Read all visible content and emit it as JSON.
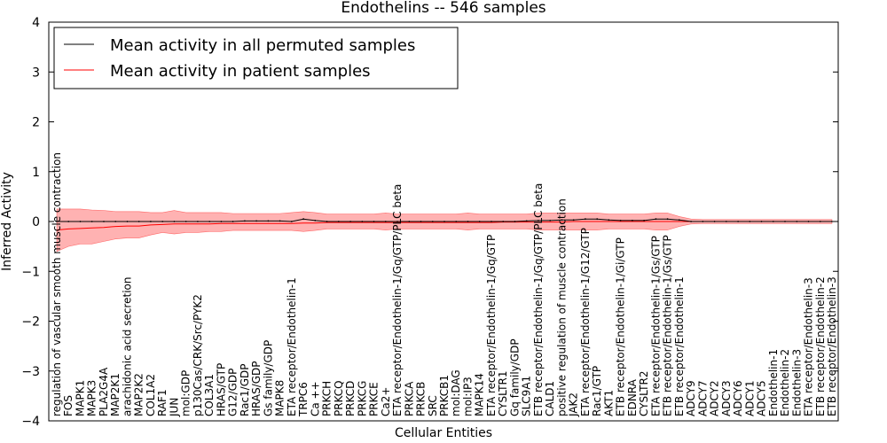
{
  "chart_data": {
    "type": "line",
    "title": "Endothelins -- 546 samples",
    "xlabel": "Cellular Entities",
    "ylabel": "Inferred Activity",
    "ylim": [
      -4,
      4
    ],
    "yticks": [
      "4",
      "3",
      "2",
      "1",
      "0",
      "−1",
      "−2",
      "−3",
      "−4"
    ],
    "grid": false,
    "legend_position": "top-left",
    "colors": {
      "permuted": "#000000",
      "patient": "#ff0000",
      "band": "#ff0000"
    },
    "categories": [
      "regulation of vascular smooth muscle contraction",
      "FOS",
      "MAPK1",
      "MAPK3",
      "PLA2G4A",
      "MAP2K1",
      "arachidonic acid secretion",
      "MAP2K2",
      "COL1A2",
      "RAF1",
      "JUN",
      "mol:GDP",
      "p130Cas/CRK/Src/PYK2",
      "COL3A1",
      "HRAS/GTP",
      "G12/GDP",
      "Rac1/GDP",
      "HRAS/GDP",
      "Gs family/GDP",
      "MAPK8",
      "ETA receptor/Endothelin-1",
      "TRPC6",
      "Ca ++",
      "PRKCH",
      "PRKCQ",
      "PRKCD",
      "PRKCG",
      "PRKCE",
      "Ca2+",
      "ETA receptor/Endothelin-1/Gq/GTP/PLC beta",
      "PRKCA",
      "PRKCB",
      "SRC",
      "PRKCB1",
      "mol:DAG",
      "mol:IP3",
      "MAPK14",
      "ETA receptor/Endothelin-1/Gq/GTP",
      "CYSLTR1",
      "Gq family/GDP",
      "SLC9A1",
      "ETB receptor/Endothelin-1/Gq/GTP/PLC beta",
      "CALD1",
      "positive regulation of muscle contraction",
      "JAK2",
      "ETA receptor/Endothelin-1/G12/GTP",
      "Rac1/GTP",
      "AKT1",
      "ETB receptor/Endothelin-1/Gi/GTP",
      "EDNRA",
      "CYSLTR2",
      "ETA receptor/Endothelin-1/Gs/GTP",
      "ETB receptor/Endothelin-1/Gs/GTP",
      "ETB receptor/Endothelin-1",
      "ADCY9",
      "ADCY7",
      "ADCY2",
      "ADCY3",
      "ADCY6",
      "ADCY1",
      "ADCY5",
      "Endothelin-1",
      "Endothelin-2",
      "Endothelin-3",
      "ETA receptor/Endothelin-3",
      "ETB receptor/Endothelin-2",
      "ETB receptor/Endothelin-3"
    ],
    "series": [
      {
        "name": "Mean activity in all permuted samples",
        "values": [
          0,
          0,
          0,
          0,
          0,
          0,
          0,
          0,
          0,
          0,
          0,
          0,
          0,
          0,
          0,
          0,
          0.01,
          0.01,
          0.01,
          0.01,
          0,
          0.05,
          0.02,
          0,
          0,
          0,
          0,
          0,
          0,
          0,
          0,
          0,
          0,
          0,
          0,
          0,
          0,
          0,
          0,
          0,
          0.01,
          0.02,
          0.02,
          0.03,
          0.03,
          0.05,
          0.05,
          0.03,
          0.02,
          0.02,
          0.02,
          0.05,
          0.05,
          0.03,
          0,
          0,
          0,
          0,
          0,
          0,
          0,
          0,
          0,
          0,
          0,
          0,
          0
        ]
      },
      {
        "name": "Mean activity in patient samples",
        "values": [
          -0.17,
          -0.15,
          -0.14,
          -0.13,
          -0.12,
          -0.1,
          -0.09,
          -0.09,
          -0.07,
          -0.06,
          -0.05,
          -0.05,
          -0.05,
          -0.05,
          -0.04,
          -0.04,
          -0.04,
          -0.04,
          -0.04,
          -0.04,
          -0.04,
          -0.03,
          -0.03,
          -0.02,
          -0.02,
          -0.02,
          -0.02,
          -0.02,
          -0.02,
          -0.02,
          -0.02,
          -0.02,
          -0.02,
          -0.02,
          -0.02,
          -0.02,
          -0.02,
          -0.02,
          -0.01,
          -0.01,
          -0.01,
          -0.01,
          -0.01,
          -0.01,
          0,
          0,
          0,
          0,
          0,
          0,
          0,
          0,
          0,
          0,
          0,
          0,
          0,
          0,
          0,
          0,
          0,
          0,
          0,
          0,
          0,
          0,
          0
        ]
      }
    ],
    "band": {
      "upper": [
        0.25,
        0.25,
        0.25,
        0.23,
        0.22,
        0.2,
        0.2,
        0.2,
        0.18,
        0.18,
        0.22,
        0.18,
        0.18,
        0.18,
        0.18,
        0.16,
        0.16,
        0.16,
        0.16,
        0.16,
        0.18,
        0.2,
        0.18,
        0.15,
        0.15,
        0.15,
        0.15,
        0.15,
        0.17,
        0.15,
        0.15,
        0.15,
        0.15,
        0.15,
        0.15,
        0.17,
        0.15,
        0.15,
        0.15,
        0.15,
        0.15,
        0.17,
        0.17,
        0.17,
        0.17,
        0.17,
        0.17,
        0.15,
        0.15,
        0.15,
        0.15,
        0.17,
        0.17,
        0.1,
        0.05,
        0.04,
        0.04,
        0.04,
        0.04,
        0.04,
        0.04,
        0.04,
        0.04,
        0.04,
        0.04,
        0.04,
        0.04
      ],
      "lower": [
        -0.6,
        -0.5,
        -0.45,
        -0.45,
        -0.4,
        -0.35,
        -0.33,
        -0.33,
        -0.27,
        -0.22,
        -0.25,
        -0.22,
        -0.22,
        -0.2,
        -0.2,
        -0.18,
        -0.18,
        -0.18,
        -0.18,
        -0.18,
        -0.18,
        -0.2,
        -0.18,
        -0.15,
        -0.15,
        -0.15,
        -0.15,
        -0.15,
        -0.17,
        -0.15,
        -0.15,
        -0.15,
        -0.15,
        -0.15,
        -0.15,
        -0.17,
        -0.15,
        -0.15,
        -0.15,
        -0.15,
        -0.15,
        -0.17,
        -0.17,
        -0.17,
        -0.17,
        -0.17,
        -0.17,
        -0.15,
        -0.15,
        -0.15,
        -0.15,
        -0.17,
        -0.17,
        -0.1,
        -0.05,
        -0.04,
        -0.04,
        -0.04,
        -0.04,
        -0.04,
        -0.04,
        -0.04,
        -0.04,
        -0.04,
        -0.04,
        -0.04,
        -0.04
      ]
    }
  }
}
